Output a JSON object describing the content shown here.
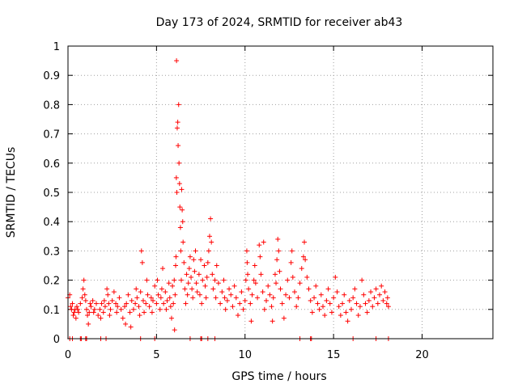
{
  "chart_data": {
    "type": "scatter",
    "title": "Day 173 of 2024, SRMTID for receiver ab43",
    "xlabel": "GPS time / hours",
    "ylabel": "SRMTID / TECUs",
    "xlim": [
      0,
      24
    ],
    "ylim": [
      0,
      1
    ],
    "xticks": [
      "0",
      "5",
      "10",
      "15",
      "20"
    ],
    "yticks": [
      "0",
      "0.1",
      "0.2",
      "0.3",
      "0.4",
      "0.5",
      "0.6",
      "0.7",
      "0.8",
      "0.9",
      "1"
    ],
    "grid": true,
    "marker": "+",
    "color": "#ff0000",
    "series": [
      {
        "name": "SRMTID",
        "points": [
          [
            0.0,
            0.14
          ],
          [
            0.1,
            0.15
          ],
          [
            0.15,
            0.11
          ],
          [
            0.2,
            0.1
          ],
          [
            0.25,
            0.12
          ],
          [
            0.3,
            0.08
          ],
          [
            0.35,
            0.09
          ],
          [
            0.4,
            0.1
          ],
          [
            0.45,
            0.07
          ],
          [
            0.5,
            0.11
          ],
          [
            0.55,
            0.1
          ],
          [
            0.6,
            0.09
          ],
          [
            0.7,
            0.12
          ],
          [
            0.8,
            0.14
          ],
          [
            0.85,
            0.17
          ],
          [
            0.9,
            0.2
          ],
          [
            0.95,
            0.15
          ],
          [
            1.0,
            0.13
          ],
          [
            1.05,
            0.1
          ],
          [
            1.1,
            0.08
          ],
          [
            1.15,
            0.05
          ],
          [
            1.2,
            0.09
          ],
          [
            1.25,
            0.12
          ],
          [
            1.3,
            0.11
          ],
          [
            1.4,
            0.13
          ],
          [
            1.45,
            0.09
          ],
          [
            1.5,
            0.1
          ],
          [
            1.6,
            0.12
          ],
          [
            1.7,
            0.08
          ],
          [
            1.8,
            0.1
          ],
          [
            1.85,
            0.07
          ],
          [
            1.9,
            0.12
          ],
          [
            2.0,
            0.09
          ],
          [
            2.05,
            0.13
          ],
          [
            2.1,
            0.11
          ],
          [
            2.2,
            0.17
          ],
          [
            2.25,
            0.15
          ],
          [
            2.3,
            0.12
          ],
          [
            2.35,
            0.08
          ],
          [
            2.4,
            0.1
          ],
          [
            2.5,
            0.13
          ],
          [
            2.6,
            0.16
          ],
          [
            2.7,
            0.12
          ],
          [
            2.75,
            0.09
          ],
          [
            2.8,
            0.11
          ],
          [
            2.9,
            0.14
          ],
          [
            3.0,
            0.1
          ],
          [
            3.1,
            0.07
          ],
          [
            3.2,
            0.11
          ],
          [
            3.25,
            0.05
          ],
          [
            3.3,
            0.12
          ],
          [
            3.4,
            0.15
          ],
          [
            3.5,
            0.09
          ],
          [
            3.55,
            0.04
          ],
          [
            3.6,
            0.13
          ],
          [
            3.7,
            0.1
          ],
          [
            3.8,
            0.12
          ],
          [
            3.85,
            0.17
          ],
          [
            3.9,
            0.14
          ],
          [
            4.0,
            0.11
          ],
          [
            4.05,
            0.08
          ],
          [
            4.1,
            0.16
          ],
          [
            4.15,
            0.3
          ],
          [
            4.2,
            0.26
          ],
          [
            4.25,
            0.13
          ],
          [
            4.3,
            0.09
          ],
          [
            4.4,
            0.12
          ],
          [
            4.45,
            0.2
          ],
          [
            4.5,
            0.15
          ],
          [
            4.6,
            0.11
          ],
          [
            4.7,
            0.14
          ],
          [
            4.75,
            0.09
          ],
          [
            4.8,
            0.13
          ],
          [
            4.9,
            0.18
          ],
          [
            5.0,
            0.12
          ],
          [
            5.05,
            0.2
          ],
          [
            5.1,
            0.15
          ],
          [
            5.2,
            0.1
          ],
          [
            5.25,
            0.14
          ],
          [
            5.3,
            0.17
          ],
          [
            5.35,
            0.24
          ],
          [
            5.4,
            0.12
          ],
          [
            5.5,
            0.16
          ],
          [
            5.55,
            0.1
          ],
          [
            5.6,
            0.13
          ],
          [
            5.7,
            0.19
          ],
          [
            5.75,
            0.14
          ],
          [
            5.8,
            0.11
          ],
          [
            5.85,
            0.07
          ],
          [
            5.9,
            0.18
          ],
          [
            5.95,
            0.12
          ],
          [
            6.0,
            0.2
          ],
          [
            6.02,
            0.03
          ],
          [
            6.05,
            0.15
          ],
          [
            6.08,
            0.25
          ],
          [
            6.1,
            0.28
          ],
          [
            6.12,
            0.55
          ],
          [
            6.13,
            0.95
          ],
          [
            6.15,
            0.5
          ],
          [
            6.17,
            0.72
          ],
          [
            6.2,
            0.74
          ],
          [
            6.22,
            0.66
          ],
          [
            6.25,
            0.8
          ],
          [
            6.27,
            0.6
          ],
          [
            6.3,
            0.53
          ],
          [
            6.32,
            0.45
          ],
          [
            6.35,
            0.38
          ],
          [
            6.37,
            0.3
          ],
          [
            6.4,
            0.2
          ],
          [
            6.42,
            0.51
          ],
          [
            6.45,
            0.44
          ],
          [
            6.48,
            0.4
          ],
          [
            6.5,
            0.33
          ],
          [
            6.55,
            0.26
          ],
          [
            6.6,
            0.17
          ],
          [
            6.65,
            0.12
          ],
          [
            6.7,
            0.22
          ],
          [
            6.75,
            0.15
          ],
          [
            6.8,
            0.19
          ],
          [
            6.85,
            0.24
          ],
          [
            6.9,
            0.28
          ],
          [
            6.95,
            0.21
          ],
          [
            7.0,
            0.17
          ],
          [
            7.05,
            0.14
          ],
          [
            7.1,
            0.27
          ],
          [
            7.15,
            0.23
          ],
          [
            7.2,
            0.3
          ],
          [
            7.25,
            0.19
          ],
          [
            7.3,
            0.16
          ],
          [
            7.4,
            0.22
          ],
          [
            7.45,
            0.15
          ],
          [
            7.5,
            0.27
          ],
          [
            7.55,
            0.12
          ],
          [
            7.6,
            0.2
          ],
          [
            7.7,
            0.25
          ],
          [
            7.75,
            0.18
          ],
          [
            7.8,
            0.14
          ],
          [
            7.85,
            0.21
          ],
          [
            7.9,
            0.26
          ],
          [
            7.95,
            0.3
          ],
          [
            8.0,
            0.35
          ],
          [
            8.05,
            0.41
          ],
          [
            8.1,
            0.33
          ],
          [
            8.15,
            0.22
          ],
          [
            8.2,
            0.17
          ],
          [
            8.3,
            0.2
          ],
          [
            8.35,
            0.14
          ],
          [
            8.4,
            0.25
          ],
          [
            8.5,
            0.19
          ],
          [
            8.6,
            0.12
          ],
          [
            8.7,
            0.16
          ],
          [
            8.8,
            0.2
          ],
          [
            8.85,
            0.14
          ],
          [
            8.9,
            0.1
          ],
          [
            9.0,
            0.13
          ],
          [
            9.1,
            0.17
          ],
          [
            9.2,
            0.15
          ],
          [
            9.3,
            0.11
          ],
          [
            9.4,
            0.18
          ],
          [
            9.5,
            0.14
          ],
          [
            9.6,
            0.08
          ],
          [
            9.7,
            0.12
          ],
          [
            9.8,
            0.16
          ],
          [
            9.9,
            0.1
          ],
          [
            10.0,
            0.13
          ],
          [
            10.05,
            0.2
          ],
          [
            10.1,
            0.3
          ],
          [
            10.12,
            0.26
          ],
          [
            10.15,
            0.22
          ],
          [
            10.2,
            0.17
          ],
          [
            10.3,
            0.12
          ],
          [
            10.35,
            0.06
          ],
          [
            10.4,
            0.15
          ],
          [
            10.5,
            0.2
          ],
          [
            10.55,
            0.25
          ],
          [
            10.6,
            0.19
          ],
          [
            10.7,
            0.14
          ],
          [
            10.8,
            0.32
          ],
          [
            10.85,
            0.28
          ],
          [
            10.9,
            0.22
          ],
          [
            11.0,
            0.16
          ],
          [
            11.05,
            0.33
          ],
          [
            11.1,
            0.1
          ],
          [
            11.2,
            0.13
          ],
          [
            11.3,
            0.18
          ],
          [
            11.4,
            0.15
          ],
          [
            11.5,
            0.11
          ],
          [
            11.55,
            0.06
          ],
          [
            11.6,
            0.14
          ],
          [
            11.7,
            0.22
          ],
          [
            11.75,
            0.19
          ],
          [
            11.8,
            0.27
          ],
          [
            11.85,
            0.34
          ],
          [
            11.9,
            0.3
          ],
          [
            11.95,
            0.23
          ],
          [
            12.0,
            0.17
          ],
          [
            12.1,
            0.12
          ],
          [
            12.2,
            0.07
          ],
          [
            12.3,
            0.15
          ],
          [
            12.4,
            0.2
          ],
          [
            12.5,
            0.14
          ],
          [
            12.6,
            0.26
          ],
          [
            12.65,
            0.3
          ],
          [
            12.7,
            0.21
          ],
          [
            12.8,
            0.16
          ],
          [
            12.9,
            0.11
          ],
          [
            13.0,
            0.14
          ],
          [
            13.1,
            0.19
          ],
          [
            13.2,
            0.24
          ],
          [
            13.3,
            0.28
          ],
          [
            13.35,
            0.33
          ],
          [
            13.4,
            0.27
          ],
          [
            13.5,
            0.21
          ],
          [
            13.6,
            0.17
          ],
          [
            13.7,
            0.13
          ],
          [
            13.8,
            0.09
          ],
          [
            13.9,
            0.14
          ],
          [
            14.0,
            0.18
          ],
          [
            14.1,
            0.12
          ],
          [
            14.2,
            0.1
          ],
          [
            14.3,
            0.15
          ],
          [
            14.4,
            0.11
          ],
          [
            14.5,
            0.08
          ],
          [
            14.6,
            0.13
          ],
          [
            14.7,
            0.17
          ],
          [
            14.8,
            0.12
          ],
          [
            14.9,
            0.09
          ],
          [
            15.0,
            0.14
          ],
          [
            15.1,
            0.21
          ],
          [
            15.2,
            0.16
          ],
          [
            15.3,
            0.11
          ],
          [
            15.4,
            0.08
          ],
          [
            15.5,
            0.12
          ],
          [
            15.6,
            0.15
          ],
          [
            15.7,
            0.09
          ],
          [
            15.8,
            0.06
          ],
          [
            15.9,
            0.13
          ],
          [
            16.0,
            0.1
          ],
          [
            16.1,
            0.14
          ],
          [
            16.2,
            0.17
          ],
          [
            16.3,
            0.12
          ],
          [
            16.4,
            0.08
          ],
          [
            16.5,
            0.11
          ],
          [
            16.6,
            0.2
          ],
          [
            16.7,
            0.15
          ],
          [
            16.8,
            0.12
          ],
          [
            16.9,
            0.09
          ],
          [
            17.0,
            0.13
          ],
          [
            17.1,
            0.16
          ],
          [
            17.2,
            0.11
          ],
          [
            17.3,
            0.14
          ],
          [
            17.4,
            0.17
          ],
          [
            17.5,
            0.12
          ],
          [
            17.6,
            0.15
          ],
          [
            17.7,
            0.18
          ],
          [
            17.8,
            0.13
          ],
          [
            17.9,
            0.16
          ],
          [
            18.0,
            0.12
          ],
          [
            18.05,
            0.14
          ],
          [
            18.1,
            0.11
          ],
          [
            0.1,
            0.0
          ],
          [
            0.25,
            0.0
          ],
          [
            0.7,
            0.0
          ],
          [
            0.75,
            0.0
          ],
          [
            1.0,
            0.0
          ],
          [
            1.05,
            0.0
          ],
          [
            1.85,
            0.0
          ],
          [
            2.15,
            0.0
          ],
          [
            4.1,
            0.0
          ],
          [
            4.9,
            0.0
          ],
          [
            6.9,
            0.0
          ],
          [
            7.5,
            0.0
          ],
          [
            7.55,
            0.0
          ],
          [
            7.9,
            0.0
          ],
          [
            8.3,
            0.0
          ],
          [
            13.1,
            0.0
          ],
          [
            13.7,
            0.0
          ],
          [
            13.75,
            0.0
          ],
          [
            16.1,
            0.0
          ],
          [
            17.4,
            0.0
          ],
          [
            18.1,
            0.0
          ]
        ]
      }
    ]
  }
}
